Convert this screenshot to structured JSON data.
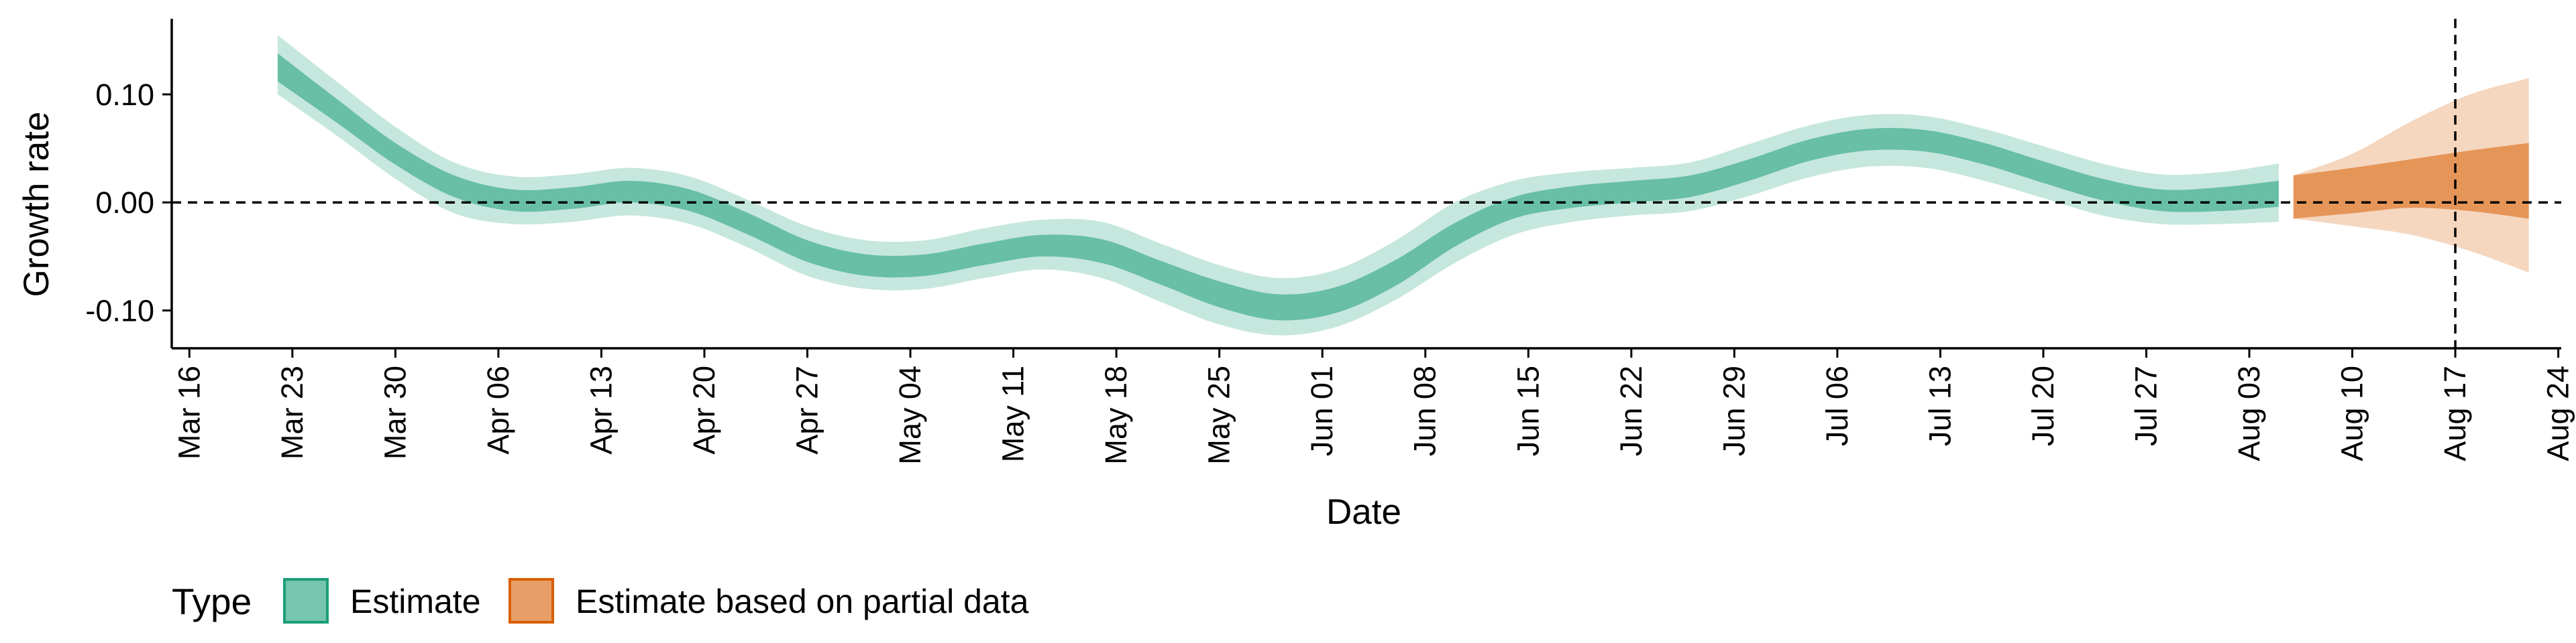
{
  "chart_data": {
    "type": "area",
    "title": "",
    "xlabel": "Date",
    "ylabel": "Growth rate",
    "x_ticks": [
      "Mar 16",
      "Mar 23",
      "Mar 30",
      "Apr 06",
      "Apr 13",
      "Apr 20",
      "Apr 27",
      "May 04",
      "May 11",
      "May 18",
      "May 25",
      "Jun 01",
      "Jun 08",
      "Jun 15",
      "Jun 22",
      "Jun 29",
      "Jul 06",
      "Jul 13",
      "Jul 20",
      "Jul 27",
      "Aug 03",
      "Aug 10",
      "Aug 17",
      "Aug 24"
    ],
    "y_ticks": [
      "0.10",
      "0.00",
      "-0.10"
    ],
    "y_tick_values": [
      0.1,
      0.0,
      -0.1
    ],
    "xlim_days": [
      -1.2,
      161.2
    ],
    "ylim": [
      -0.135,
      0.17
    ],
    "reference_lines": {
      "horizontal_y": 0.0,
      "vertical_date": "Aug 17"
    },
    "legend": {
      "title": "Type",
      "position": "bottom-left",
      "entries": [
        {
          "label": "Estimate",
          "color": "#1B9E77"
        },
        {
          "label": "Estimate based on partial data",
          "color": "#D95F02"
        }
      ]
    },
    "series": [
      {
        "name": "Estimate",
        "color": "#1B9E77",
        "x_days": [
          6,
          10,
          14,
          18,
          22,
          26,
          30,
          34,
          38,
          42,
          46,
          50,
          54,
          58,
          62,
          66,
          70,
          74,
          78,
          82,
          86,
          90,
          94,
          98,
          102,
          106,
          110,
          114,
          118,
          122,
          126,
          130,
          134,
          138,
          142
        ],
        "median": [
          0.125,
          0.085,
          0.045,
          0.015,
          0.002,
          0.004,
          0.01,
          0.002,
          -0.02,
          -0.045,
          -0.058,
          -0.058,
          -0.048,
          -0.04,
          -0.045,
          -0.065,
          -0.085,
          -0.097,
          -0.09,
          -0.065,
          -0.03,
          -0.005,
          0.005,
          0.01,
          0.015,
          0.03,
          0.048,
          0.058,
          0.057,
          0.045,
          0.028,
          0.012,
          0.002,
          0.003,
          0.008
        ],
        "inner_lo": [
          0.112,
          0.074,
          0.035,
          0.005,
          -0.008,
          -0.006,
          0.0,
          -0.008,
          -0.03,
          -0.055,
          -0.068,
          -0.068,
          -0.058,
          -0.05,
          -0.056,
          -0.076,
          -0.097,
          -0.109,
          -0.102,
          -0.077,
          -0.041,
          -0.015,
          -0.005,
          0.0,
          0.005,
          0.02,
          0.038,
          0.048,
          0.047,
          0.035,
          0.018,
          0.002,
          -0.008,
          -0.008,
          -0.004
        ],
        "inner_hi": [
          0.138,
          0.096,
          0.055,
          0.025,
          0.012,
          0.014,
          0.02,
          0.012,
          -0.01,
          -0.035,
          -0.048,
          -0.048,
          -0.038,
          -0.03,
          -0.034,
          -0.054,
          -0.073,
          -0.085,
          -0.078,
          -0.053,
          -0.019,
          0.005,
          0.015,
          0.02,
          0.025,
          0.04,
          0.058,
          0.068,
          0.067,
          0.055,
          0.038,
          0.022,
          0.012,
          0.014,
          0.02
        ],
        "outer_lo": [
          0.1,
          0.062,
          0.022,
          -0.01,
          -0.02,
          -0.018,
          -0.012,
          -0.02,
          -0.042,
          -0.068,
          -0.08,
          -0.08,
          -0.07,
          -0.062,
          -0.07,
          -0.092,
          -0.113,
          -0.123,
          -0.115,
          -0.09,
          -0.056,
          -0.03,
          -0.018,
          -0.012,
          -0.008,
          0.006,
          0.023,
          0.033,
          0.032,
          0.02,
          0.004,
          -0.012,
          -0.02,
          -0.02,
          -0.018
        ],
        "outer_hi": [
          0.155,
          0.112,
          0.07,
          0.037,
          0.024,
          0.026,
          0.032,
          0.024,
          0.002,
          -0.022,
          -0.035,
          -0.035,
          -0.024,
          -0.016,
          -0.018,
          -0.038,
          -0.058,
          -0.07,
          -0.062,
          -0.035,
          0.0,
          0.02,
          0.028,
          0.032,
          0.037,
          0.054,
          0.071,
          0.081,
          0.08,
          0.068,
          0.052,
          0.036,
          0.026,
          0.028,
          0.036
        ]
      },
      {
        "name": "Estimate based on partial data",
        "color": "#D95F02",
        "x_days": [
          143,
          147,
          151,
          155,
          159
        ],
        "median": [
          0.005,
          0.01,
          0.015,
          0.02,
          0.02
        ],
        "inner_lo": [
          -0.015,
          -0.01,
          -0.005,
          -0.008,
          -0.015
        ],
        "inner_hi": [
          0.025,
          0.032,
          0.04,
          0.048,
          0.055
        ],
        "outer_lo": [
          -0.015,
          -0.022,
          -0.03,
          -0.045,
          -0.065
        ],
        "outer_hi": [
          0.025,
          0.045,
          0.075,
          0.1,
          0.115
        ]
      }
    ]
  }
}
